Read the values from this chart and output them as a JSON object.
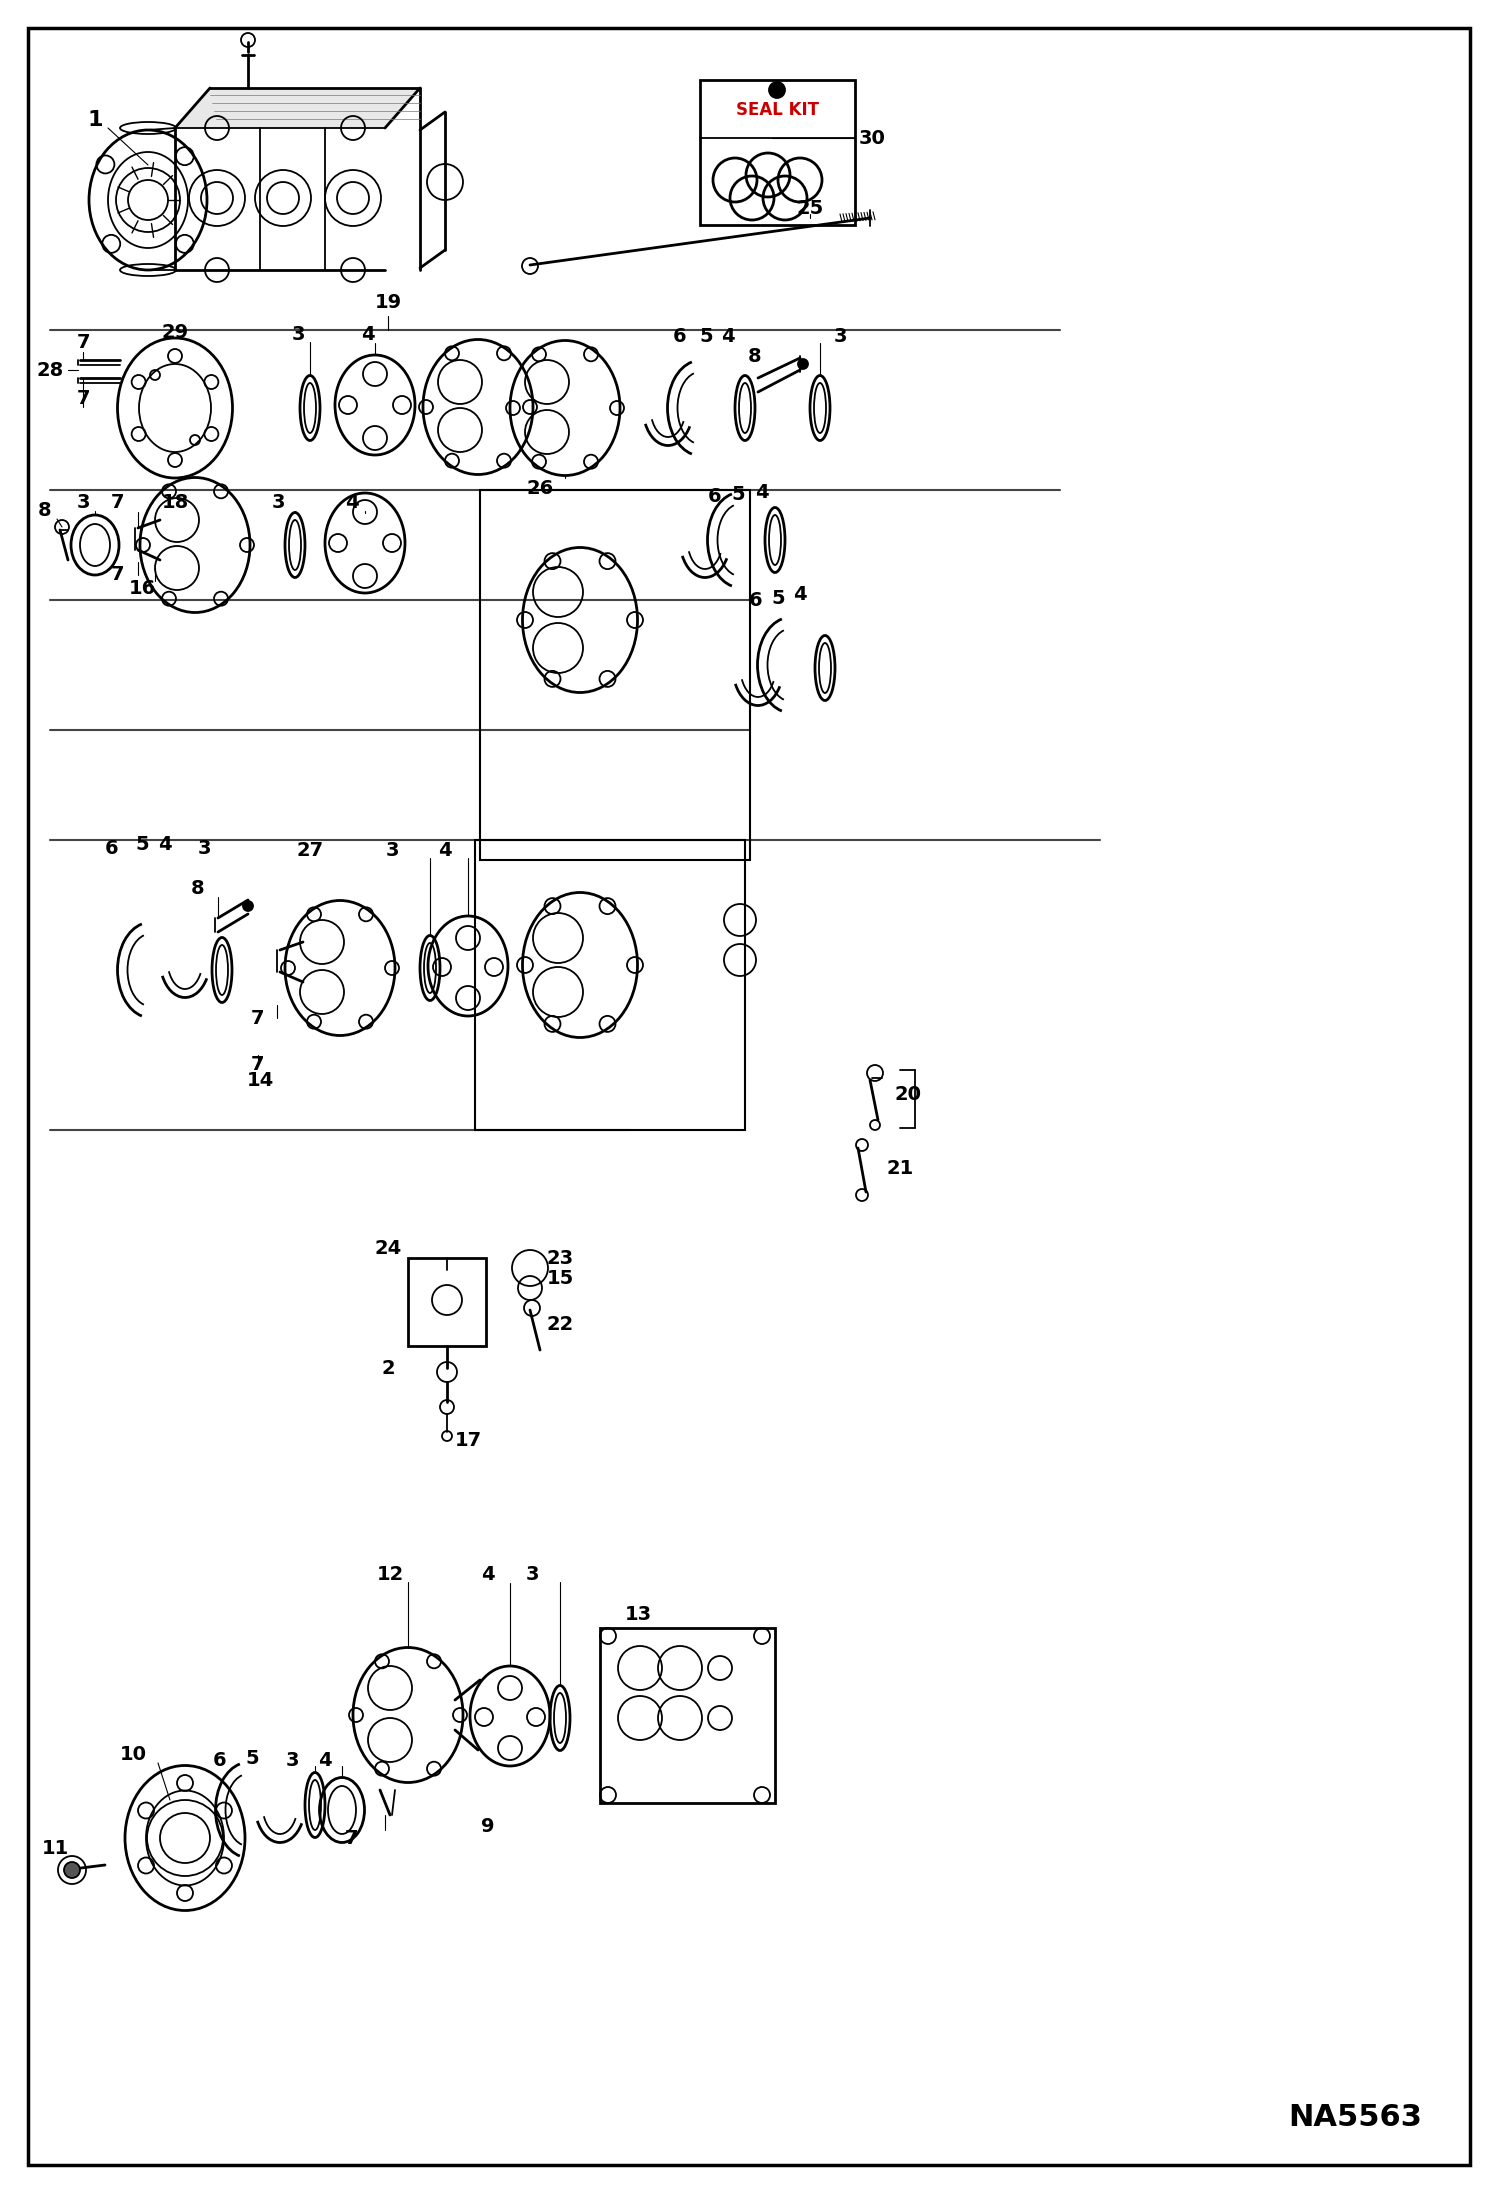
{
  "background_color": "#ffffff",
  "line_color": "#000000",
  "fig_width": 14.98,
  "fig_height": 21.93,
  "dpi": 100,
  "na_code": "NA5563",
  "seal_kit_label": "SEAL KIT",
  "band_lines": [
    [
      50,
      330,
      1050,
      330
    ],
    [
      50,
      490,
      1050,
      490
    ],
    [
      50,
      600,
      750,
      600
    ],
    [
      50,
      730,
      750,
      730
    ],
    [
      50,
      840,
      1100,
      840
    ],
    [
      50,
      1130,
      630,
      1130
    ],
    [
      50,
      1560,
      1100,
      1560
    ]
  ]
}
